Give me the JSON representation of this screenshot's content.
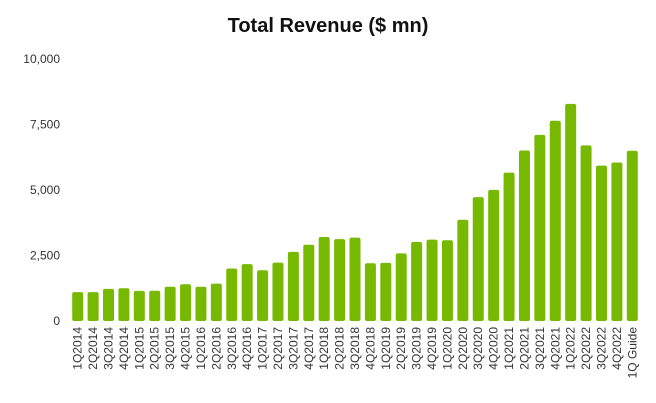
{
  "chart_data": {
    "type": "bar",
    "title": "Total Revenue ($ mn)",
    "xlabel": "",
    "ylabel": "",
    "ylim": [
      0,
      10000
    ],
    "yticks": [
      0,
      2500,
      5000,
      7500,
      10000
    ],
    "ytick_labels": [
      "0",
      "2,500",
      "5,000",
      "7,500",
      "10,000"
    ],
    "grid": false,
    "bar_color": "#76b900",
    "categories": [
      "1Q2014",
      "2Q2014",
      "3Q2014",
      "4Q2014",
      "1Q2015",
      "2Q2015",
      "3Q2015",
      "4Q2015",
      "1Q2016",
      "2Q2016",
      "3Q2016",
      "4Q2016",
      "1Q2017",
      "2Q2017",
      "3Q2017",
      "4Q2017",
      "1Q2018",
      "2Q2018",
      "3Q2018",
      "4Q2018",
      "1Q2019",
      "2Q2019",
      "3Q2019",
      "4Q2019",
      "1Q2020",
      "2Q2020",
      "3Q2020",
      "4Q2020",
      "1Q2021",
      "2Q2021",
      "3Q2021",
      "4Q2021",
      "1Q2022",
      "2Q2022",
      "3Q2022",
      "4Q2022",
      "1Q Guide"
    ],
    "values": [
      1103,
      1103,
      1225,
      1251,
      1151,
      1153,
      1305,
      1401,
      1305,
      1428,
      2004,
      2173,
      1937,
      2230,
      2636,
      2911,
      3207,
      3123,
      3181,
      2205,
      2220,
      2579,
      3014,
      3105,
      3080,
      3866,
      4726,
      5003,
      5661,
      6507,
      7103,
      7643,
      8288,
      6704,
      5931,
      6051,
      6500
    ]
  }
}
